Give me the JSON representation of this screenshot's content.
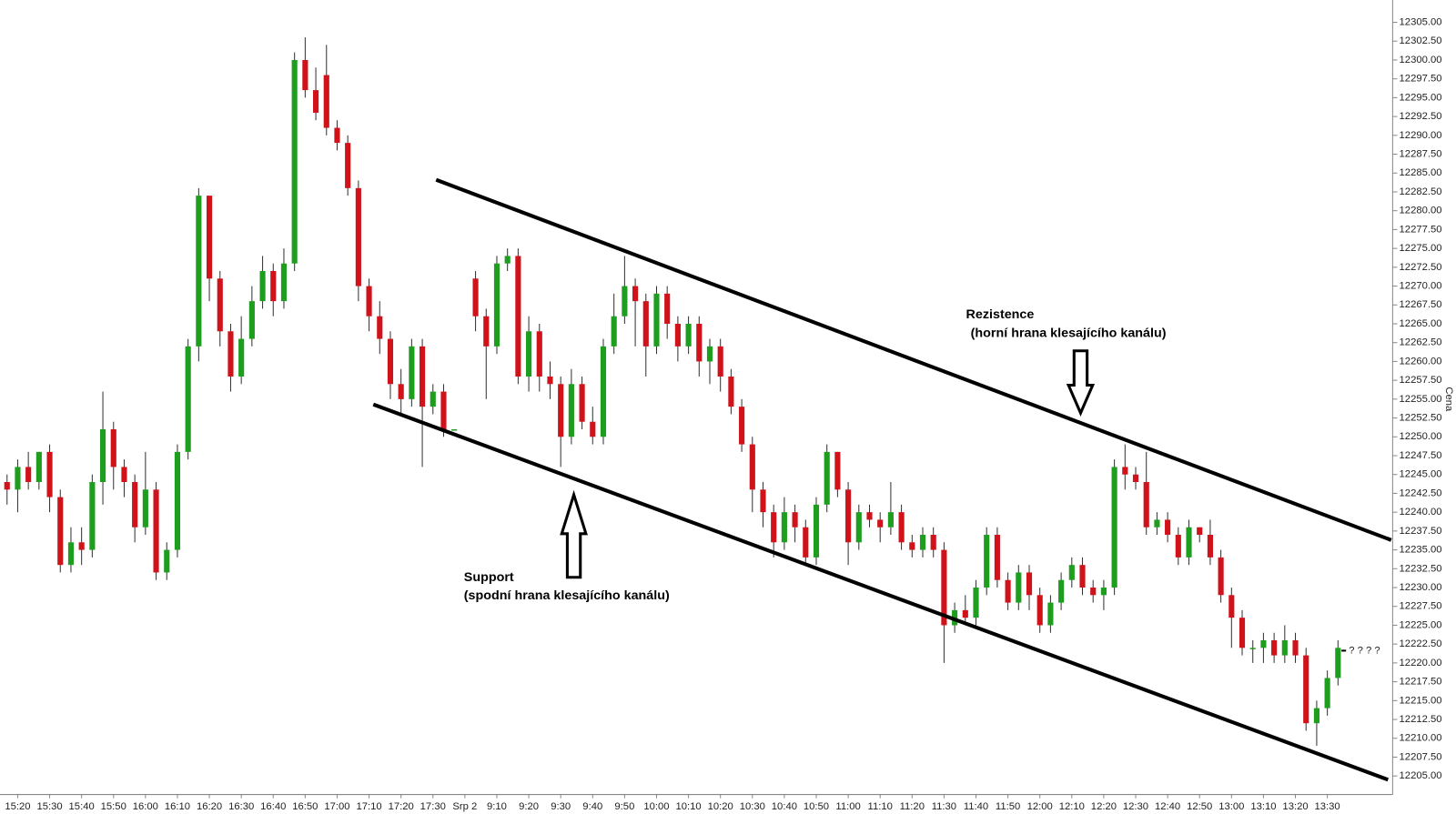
{
  "chart_data": {
    "type": "candlestick",
    "y_label": "Cena",
    "categories": [
      null,
      "15:20",
      null,
      null,
      "15:30",
      null,
      null,
      "15:40",
      null,
      null,
      "15:50",
      null,
      null,
      "16:00",
      null,
      null,
      "16:10",
      null,
      null,
      "16:20",
      null,
      null,
      "16:30",
      null,
      null,
      "16:40",
      null,
      null,
      "16:50",
      null,
      null,
      "17:00",
      null,
      null,
      "17:10",
      null,
      null,
      "17:20",
      null,
      null,
      "17:30",
      null,
      null,
      "Srp 2",
      null,
      null,
      "9:10",
      null,
      null,
      "9:20",
      null,
      null,
      "9:30",
      null,
      null,
      "9:40",
      null,
      null,
      "9:50",
      null,
      null,
      "10:00",
      null,
      null,
      "10:10",
      null,
      null,
      "10:20",
      null,
      null,
      "10:30",
      null,
      null,
      "10:40",
      null,
      null,
      "10:50",
      null,
      null,
      "11:00",
      null,
      null,
      "11:10",
      null,
      null,
      "11:20",
      null,
      null,
      "11:30",
      null,
      null,
      "11:40",
      null,
      null,
      "11:50",
      null,
      null,
      "12:00",
      null,
      null,
      "12:10",
      null,
      null,
      "12:20",
      null,
      null,
      "12:30",
      null,
      null,
      "12:40",
      null,
      null,
      "12:50",
      null,
      null,
      "13:00",
      null,
      null,
      "13:10",
      null,
      null,
      "13:20",
      null,
      null,
      "13:30",
      null
    ],
    "open": [
      12244,
      12243,
      12246,
      12244,
      12248,
      12242,
      12233,
      12236,
      12235,
      12244,
      12251,
      12246,
      12244,
      12238,
      12243,
      12232,
      12235,
      12248,
      12262,
      12282,
      12271,
      12264,
      12258,
      12263,
      12268,
      12272,
      12268,
      12273,
      12300,
      12296,
      12298,
      12291,
      12289,
      12283,
      12270,
      12266,
      12263,
      12257,
      12255,
      12262,
      12254,
      12256,
      12251,
      null,
      12271,
      12266,
      12262,
      12273,
      12274,
      12258,
      12264,
      12258,
      12257,
      12250,
      12257,
      12252,
      12250,
      12262,
      12266,
      12270,
      12268,
      12262,
      12269,
      12265,
      12262,
      12265,
      12260,
      12262,
      12258,
      12254,
      12249,
      12243,
      12240,
      12236,
      12240,
      12238,
      12234,
      12241,
      12248,
      12243,
      12236,
      12240,
      12239,
      12238,
      12240,
      12236,
      12235,
      12237,
      12235,
      12225,
      12227,
      12226,
      12230,
      12237,
      12231,
      12228,
      12232,
      12229,
      12225,
      12228,
      12231,
      12233,
      12230,
      12229,
      12230,
      12246,
      12245,
      12244,
      12238,
      12239,
      12237,
      12234,
      12238,
      12237,
      12234,
      12229,
      12226,
      12222,
      12222,
      12223,
      12221,
      12223,
      12221,
      12212,
      12214,
      12218
    ],
    "high": [
      12245,
      12247,
      12248,
      12248,
      12249,
      12243,
      12238,
      12238,
      12245,
      12256,
      12252,
      12247,
      12245,
      12248,
      12244,
      12236,
      12249,
      12263,
      12283,
      12282,
      12272,
      12265,
      12266,
      12270,
      12274,
      12273,
      12275,
      12301,
      12303,
      12299,
      12302,
      12292,
      12290,
      12284,
      12271,
      12268,
      12264,
      12259,
      12263,
      12263,
      12257,
      12257,
      12251,
      null,
      12272,
      12267,
      12274,
      12275,
      12275,
      12266,
      12265,
      12260,
      12258,
      12259,
      12258,
      12254,
      12263,
      12269,
      12274,
      12271,
      12269,
      12270,
      12270,
      12266,
      12266,
      12266,
      12263,
      12263,
      12259,
      12255,
      12250,
      12244,
      12241,
      12242,
      12241,
      12239,
      12242,
      12249,
      12248,
      12244,
      12241,
      12241,
      12240,
      12244,
      12241,
      12237,
      12238,
      12238,
      12236,
      12228,
      12229,
      12231,
      12238,
      12238,
      12232,
      12233,
      12233,
      12230,
      12229,
      12232,
      12234,
      12234,
      12231,
      12231,
      12247,
      12249,
      12246,
      12248,
      12240,
      12240,
      12238,
      12239,
      12238,
      12239,
      12235,
      12230,
      12227,
      12223,
      12224,
      12224,
      12225,
      12224,
      12222,
      12215,
      12219,
      12223
    ],
    "low": [
      12241,
      12240,
      12243,
      12243,
      12240,
      12232,
      12232,
      12233,
      12234,
      12241,
      12243,
      12242,
      12236,
      12237,
      12231,
      12231,
      12234,
      12247,
      12260,
      12268,
      12262,
      12256,
      12257,
      12262,
      12267,
      12266,
      12267,
      12272,
      12295,
      12292,
      12290,
      12288,
      12282,
      12268,
      12264,
      12261,
      12255,
      12253,
      12254,
      12246,
      12253,
      12250,
      12251,
      null,
      12264,
      12255,
      12261,
      12272,
      12257,
      12256,
      12256,
      12255,
      12246,
      12249,
      12251,
      12249,
      12249,
      12261,
      12265,
      12262,
      12258,
      12261,
      12263,
      12260,
      12261,
      12258,
      12257,
      12256,
      12253,
      12248,
      12240,
      12238,
      12234,
      12235,
      12236,
      12233,
      12233,
      12240,
      12242,
      12233,
      12235,
      12238,
      12236,
      12237,
      12235,
      12234,
      12234,
      12234,
      12220,
      12224,
      12225,
      12225,
      12229,
      12230,
      12227,
      12227,
      12227,
      12224,
      12224,
      12227,
      12230,
      12229,
      12228,
      12227,
      12229,
      12243,
      12243,
      12237,
      12237,
      12236,
      12233,
      12233,
      12236,
      12233,
      12228,
      12222,
      12221,
      12220,
      12220,
      12220,
      12220,
      12220,
      12211,
      12209,
      12213,
      12217
    ],
    "close": [
      12243,
      12246,
      12244,
      12248,
      12242,
      12233,
      12236,
      12235,
      12244,
      12251,
      12246,
      12244,
      12238,
      12243,
      12232,
      12235,
      12248,
      12262,
      12282,
      12271,
      12264,
      12258,
      12263,
      12268,
      12272,
      12268,
      12273,
      12300,
      12296,
      12293,
      12291,
      12289,
      12283,
      12270,
      12266,
      12263,
      12257,
      12255,
      12262,
      12254,
      12256,
      12251,
      12251,
      null,
      12266,
      12262,
      12273,
      12274,
      12258,
      12264,
      12258,
      12257,
      12250,
      12257,
      12252,
      12250,
      12262,
      12266,
      12270,
      12268,
      12262,
      12269,
      12265,
      12262,
      12265,
      12260,
      12262,
      12258,
      12254,
      12249,
      12243,
      12240,
      12236,
      12240,
      12238,
      12234,
      12241,
      12248,
      12243,
      12236,
      12240,
      12239,
      12238,
      12240,
      12236,
      12235,
      12237,
      12235,
      12225,
      12227,
      12226,
      12230,
      12237,
      12231,
      12228,
      12232,
      12229,
      12225,
      12228,
      12231,
      12233,
      12230,
      12229,
      12230,
      12246,
      12245,
      12244,
      12238,
      12239,
      12237,
      12234,
      12238,
      12237,
      12234,
      12229,
      12226,
      12222,
      12222,
      12223,
      12221,
      12223,
      12221,
      12212,
      12214,
      12218,
      12222
    ],
    "up_color": "#1e9e1e",
    "down_color": "#d0121b",
    "ylim": [
      12202.54,
      12307.96
    ],
    "yticks": [
      {
        "value": 12205,
        "label": "12205.00"
      },
      {
        "value": 12207.5,
        "label": "12207.50"
      },
      {
        "value": 12210,
        "label": "12210.00"
      },
      {
        "value": 12212.5,
        "label": "12212.50"
      },
      {
        "value": 12215,
        "label": "12215.00"
      },
      {
        "value": 12217.5,
        "label": "12217.50"
      },
      {
        "value": 12220,
        "label": "12220.00"
      },
      {
        "value": 12222.5,
        "label": "12222.50"
      },
      {
        "value": 12225,
        "label": "12225.00"
      },
      {
        "value": 12227.5,
        "label": "12227.50"
      },
      {
        "value": 12230,
        "label": "12230.00"
      },
      {
        "value": 12232.5,
        "label": "12232.50"
      },
      {
        "value": 12235,
        "label": "12235.00"
      },
      {
        "value": 12237.5,
        "label": "12237.50"
      },
      {
        "value": 12240,
        "label": "12240.00"
      },
      {
        "value": 12242.5,
        "label": "12242.50"
      },
      {
        "value": 12245,
        "label": "12245.00"
      },
      {
        "value": 12247.5,
        "label": "12247.50"
      },
      {
        "value": 12250,
        "label": "12250.00"
      },
      {
        "value": 12252.5,
        "label": "12252.50"
      },
      {
        "value": 12255,
        "label": "12255.00"
      },
      {
        "value": 12257.5,
        "label": "12257.50"
      },
      {
        "value": 12260,
        "label": "12260.00"
      },
      {
        "value": 12262.5,
        "label": "12262.50"
      },
      {
        "value": 12265,
        "label": "12265.00"
      },
      {
        "value": 12267.5,
        "label": "12267.50"
      },
      {
        "value": 12270,
        "label": "12270.00"
      },
      {
        "value": 12272.5,
        "label": "12272.50"
      },
      {
        "value": 12275,
        "label": "12275.00"
      },
      {
        "value": 12277.5,
        "label": "12277.50"
      },
      {
        "value": 12280,
        "label": "12280.00"
      },
      {
        "value": 12282.5,
        "label": "12282.50"
      },
      {
        "value": 12285,
        "label": "12285.00"
      },
      {
        "value": 12287.5,
        "label": "12287.50"
      },
      {
        "value": 12290,
        "label": "12290.00"
      },
      {
        "value": 12292.5,
        "label": "12292.50"
      },
      {
        "value": 12295,
        "label": "12295.00"
      },
      {
        "value": 12297.5,
        "label": "12297.50"
      },
      {
        "value": 12300,
        "label": "12300.00"
      },
      {
        "value": 12302.5,
        "label": "12302.50"
      },
      {
        "value": 12305,
        "label": "12305.00"
      }
    ],
    "trendlines": [
      {
        "x": [
          40.3,
          130
        ],
        "y": [
          12284.1,
          12236.3
        ]
      },
      {
        "x": [
          34.4,
          129.7
        ],
        "y": [
          12254.3,
          12204.5
        ]
      }
    ],
    "annotations": {
      "resistance": "Rezistence",
      "resistance_note": "(horní hrana klesajícího kanálu)",
      "support": "Support",
      "support_note": "(spodní hrana klesajícího kanálu)"
    },
    "last_price_marker": "? ? ? ?"
  }
}
